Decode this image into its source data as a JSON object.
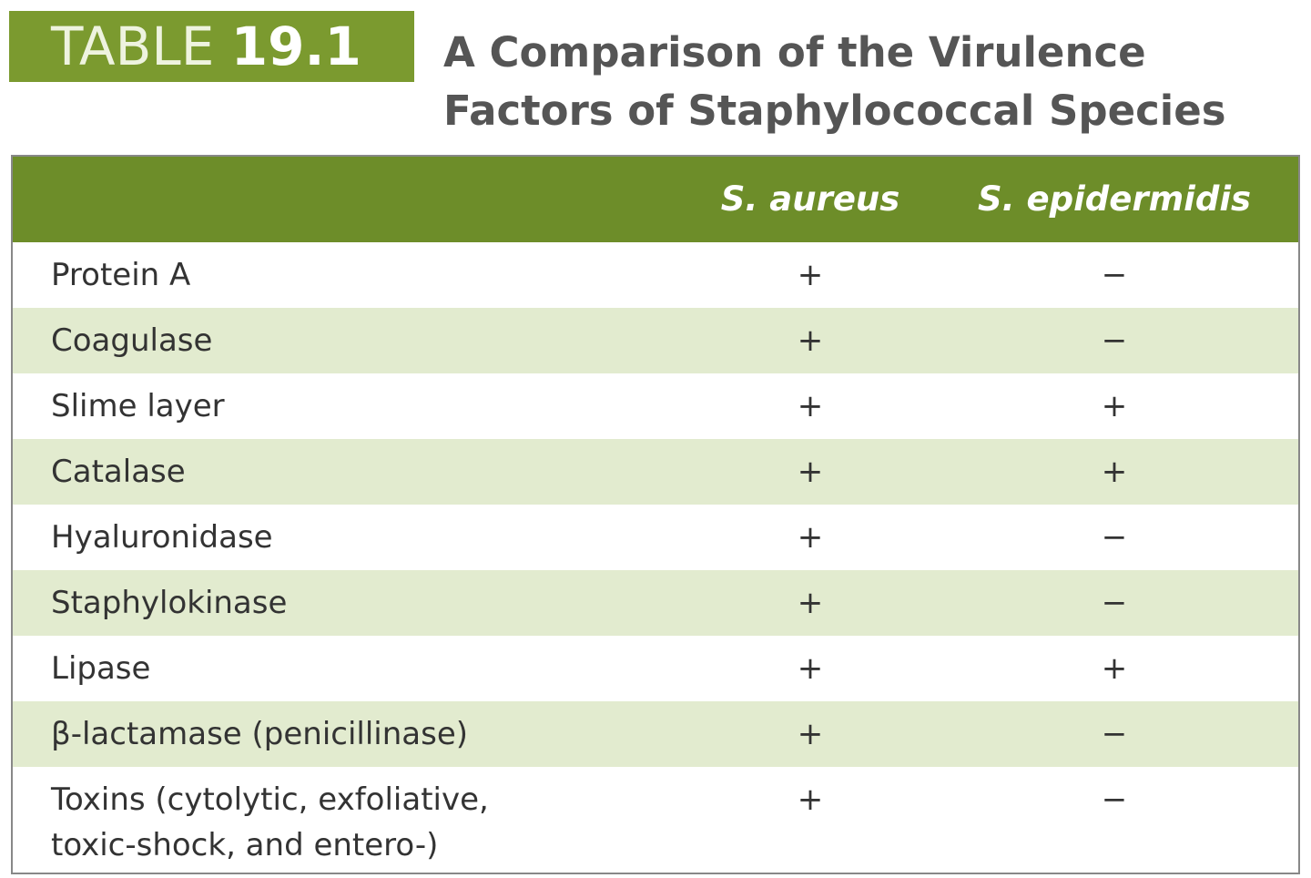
{
  "header": {
    "label": "TABLE",
    "number": "19.1",
    "title_lines": [
      "A Comparison of the Virulence",
      "Factors of Staphylococcal Species"
    ]
  },
  "table": {
    "columns": [
      "S. aureus",
      "S. epidermidis"
    ],
    "rows": [
      [
        "Protein A",
        "+",
        "−"
      ],
      [
        "Coagulase",
        "+",
        "−"
      ],
      [
        "Slime layer",
        "+",
        "+"
      ],
      [
        "Catalase",
        "+",
        "+"
      ],
      [
        "Hyaluronidase",
        "+",
        "−"
      ],
      [
        "Staphylokinase",
        "+",
        "−"
      ],
      [
        "Lipase",
        "+",
        "+"
      ],
      [
        "β-lactamase (penicillinase)",
        "+",
        "−"
      ],
      [
        "Toxins (cytolytic, exfoliative, toxic-shock, and entero-)",
        "+",
        "−"
      ]
    ]
  }
}
